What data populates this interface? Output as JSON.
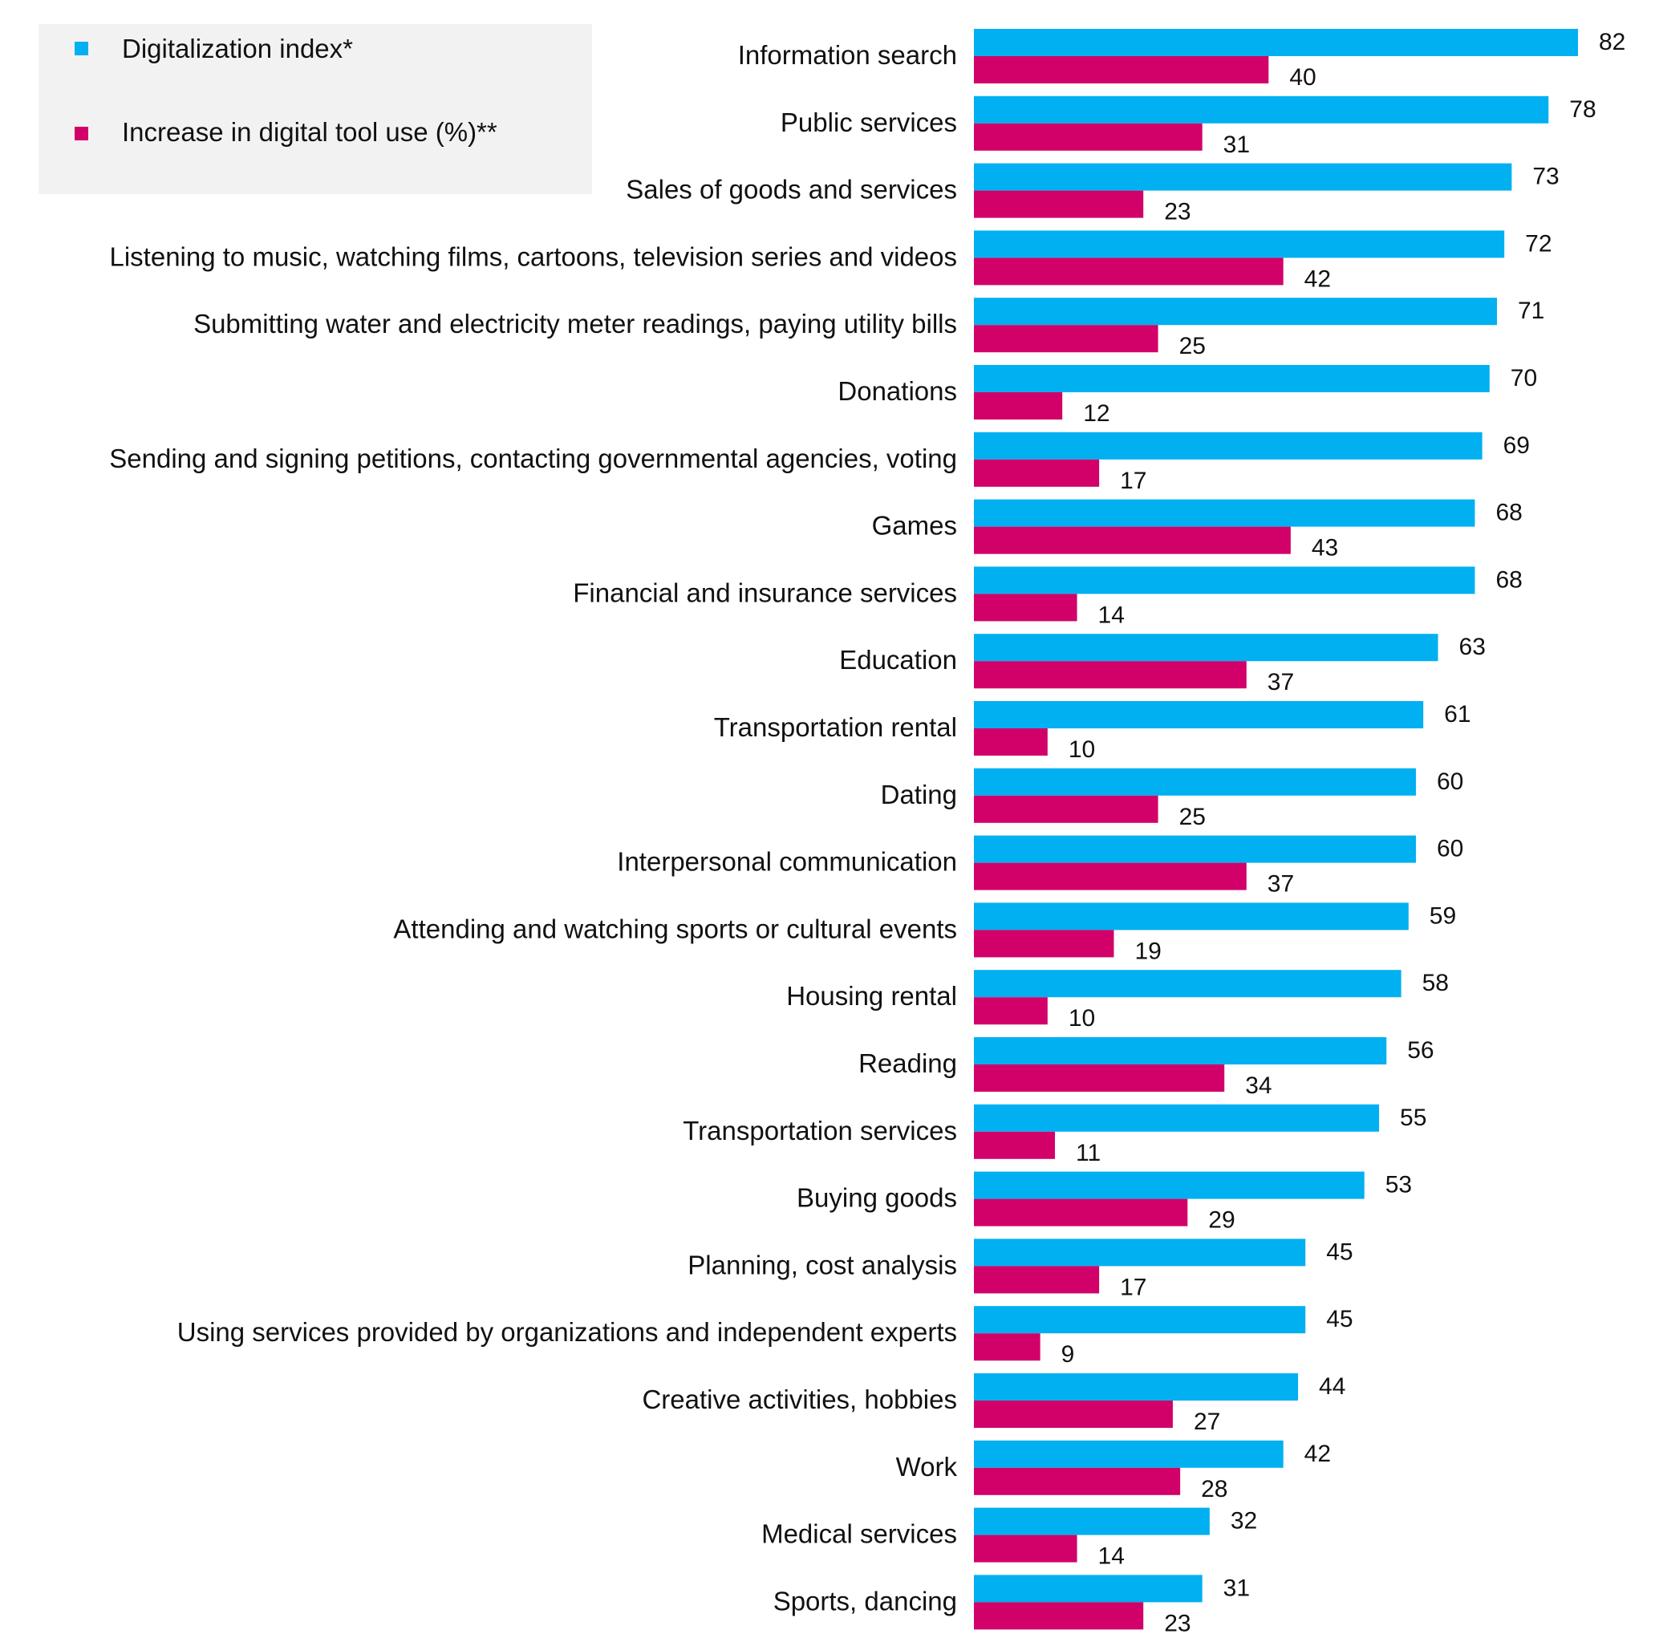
{
  "colors": {
    "series1": "#00B0F0",
    "series2": "#D20069",
    "legend_bg": "#F2F2F2",
    "text": "#111111"
  },
  "chart_data": {
    "type": "bar",
    "orientation": "horizontal",
    "title": "",
    "xlabel": "",
    "ylabel": "",
    "xlim": [
      0,
      82
    ],
    "grid": false,
    "legend_position": "top-left",
    "categories": [
      "Information search",
      "Public services",
      "Sales of goods and services",
      "Listening to music, watching films, cartoons, television series and videos",
      "Submitting water and electricity meter readings, paying utility bills",
      "Donations",
      "Sending and signing petitions, contacting governmental agencies, voting",
      "Games",
      "Financial and insurance services",
      "Education",
      "Transportation rental",
      "Dating",
      "Interpersonal communication",
      "Attending and watching sports or cultural events",
      "Housing rental",
      "Reading",
      "Transportation services",
      "Buying goods",
      "Planning, cost analysis",
      "Using services provided by organizations and independent experts",
      "Creative activities, hobbies",
      "Work",
      "Medical services",
      "Sports, dancing"
    ],
    "series": [
      {
        "name": "Digitalization index*",
        "color": "#00B0F0",
        "values": [
          82,
          78,
          73,
          72,
          71,
          70,
          69,
          68,
          68,
          63,
          61,
          60,
          60,
          59,
          58,
          56,
          55,
          53,
          45,
          45,
          44,
          42,
          32,
          31
        ]
      },
      {
        "name": "Increase in digital tool use (%)**",
        "color": "#D20069",
        "values": [
          40,
          31,
          23,
          42,
          25,
          12,
          17,
          43,
          14,
          37,
          10,
          25,
          37,
          19,
          10,
          34,
          11,
          29,
          17,
          9,
          27,
          28,
          14,
          23
        ]
      }
    ]
  }
}
